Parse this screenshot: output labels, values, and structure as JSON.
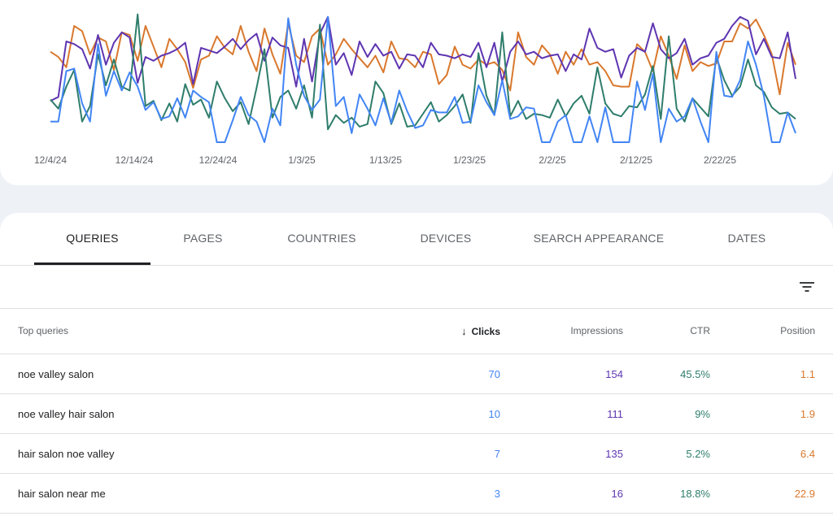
{
  "colors": {
    "clicks": "#4285f4",
    "impressions": "#5e35b1",
    "ctr": "#2e7d6b",
    "position": "#d9782d"
  },
  "chart_data": {
    "type": "line",
    "x_tick_labels": [
      "12/4/24",
      "12/14/24",
      "12/24/24",
      "1/3/25",
      "1/13/25",
      "1/23/25",
      "2/2/25",
      "2/12/25",
      "2/22/25"
    ],
    "x_start": "12/3/24",
    "x_end": "3/3/25",
    "grid": false,
    "legend": "none",
    "series": [
      {
        "key": "position",
        "color": "#d9782d",
        "values": [
          70,
          66,
          58,
          90,
          86,
          68,
          81,
          78,
          56,
          85,
          83,
          63,
          90,
          74,
          58,
          80,
          72,
          62,
          42,
          64,
          67,
          82,
          73,
          68,
          90,
          70,
          55,
          88,
          68,
          53,
          92,
          67,
          62,
          82,
          88,
          60,
          68,
          80,
          72,
          65,
          58,
          67,
          54,
          78,
          65,
          64,
          58,
          70,
          68,
          45,
          52,
          74,
          60,
          57,
          64,
          60,
          62,
          56,
          40,
          85,
          66,
          60,
          75,
          68,
          53,
          70,
          60,
          72,
          60,
          62,
          55,
          44,
          43,
          43,
          76,
          70,
          55,
          82,
          67,
          49,
          75,
          55,
          62,
          59,
          61,
          78,
          78,
          92,
          88,
          95,
          83,
          68,
          37,
          77,
          60
        ]
      },
      {
        "key": "impressions",
        "color": "#5e35b1",
        "values": [
          32,
          35,
          78,
          76,
          72,
          57,
          83,
          60,
          77,
          85,
          81,
          46,
          66,
          63,
          67,
          69,
          72,
          77,
          45,
          73,
          71,
          69,
          74,
          80,
          72,
          79,
          84,
          63,
          81,
          75,
          73,
          43,
          80,
          47,
          84,
          97,
          60,
          69,
          52,
          78,
          66,
          76,
          67,
          70,
          57,
          68,
          67,
          58,
          77,
          68,
          67,
          65,
          68,
          66,
          77,
          58,
          77,
          47,
          70,
          78,
          68,
          70,
          65,
          67,
          68,
          55,
          68,
          64,
          88,
          73,
          70,
          72,
          50,
          67,
          73,
          70,
          92,
          72,
          65,
          69,
          80,
          60,
          65,
          67,
          77,
          80,
          90,
          97,
          94,
          68,
          80,
          66,
          65,
          85,
          49
        ]
      },
      {
        "key": "ctr",
        "color": "#2e7d6b",
        "values": [
          33,
          26,
          43,
          56,
          16,
          28,
          68,
          44,
          64,
          43,
          40,
          99,
          28,
          32,
          17,
          30,
          16,
          45,
          29,
          33,
          19,
          47,
          34,
          24,
          31,
          14,
          42,
          72,
          19,
          35,
          40,
          26,
          44,
          19,
          91,
          10,
          21,
          15,
          19,
          12,
          14,
          47,
          38,
          14,
          30,
          12,
          13,
          22,
          31,
          16,
          21,
          28,
          37,
          15,
          69,
          36,
          21,
          85,
          20,
          32,
          18,
          22,
          21,
          19,
          33,
          20,
          30,
          36,
          22,
          58,
          30,
          22,
          20,
          28,
          27,
          37,
          59,
          18,
          82,
          26,
          16,
          34,
          27,
          20,
          66,
          48,
          36,
          43,
          64,
          44,
          39,
          27,
          22,
          23,
          18
        ]
      },
      {
        "key": "clicks",
        "color": "#4285f4",
        "values": [
          16,
          16,
          55,
          57,
          30,
          16,
          76,
          36,
          55,
          40,
          54,
          43,
          25,
          31,
          18,
          20,
          34,
          19,
          40,
          35,
          31,
          0,
          0,
          17,
          35,
          21,
          16,
          0,
          26,
          13,
          96,
          60,
          36,
          25,
          33,
          97,
          28,
          35,
          7,
          37,
          26,
          13,
          34,
          15,
          40,
          24,
          11,
          13,
          25,
          23,
          23,
          35,
          15,
          16,
          44,
          31,
          21,
          48,
          18,
          20,
          27,
          26,
          0,
          0,
          16,
          21,
          0,
          0,
          20,
          0,
          27,
          0,
          0,
          0,
          47,
          25,
          53,
          0,
          26,
          16,
          20,
          34,
          16,
          0,
          70,
          36,
          35,
          48,
          78,
          60,
          36,
          0,
          0,
          23,
          7
        ]
      }
    ]
  },
  "tabs": {
    "queries": "QUERIES",
    "pages": "PAGES",
    "countries": "COUNTRIES",
    "devices": "DEVICES",
    "search_appearance": "SEARCH APPEARANCE",
    "dates": "DATES"
  },
  "filter": {
    "icon": "filter-icon"
  },
  "table": {
    "headers": {
      "query": "Top queries",
      "sort_icon": "arrow-downward-icon",
      "clicks": "Clicks",
      "impressions": "Impressions",
      "ctr": "CTR",
      "position": "Position"
    },
    "rows": [
      {
        "query": "noe valley salon",
        "clicks": "70",
        "impressions": "154",
        "ctr": "45.5%",
        "position": "1.1"
      },
      {
        "query": "noe valley hair salon",
        "clicks": "10",
        "impressions": "111",
        "ctr": "9%",
        "position": "1.9"
      },
      {
        "query": "hair salon noe valley",
        "clicks": "7",
        "impressions": "135",
        "ctr": "5.2%",
        "position": "6.4"
      },
      {
        "query": "hair salon near me",
        "clicks": "3",
        "impressions": "16",
        "ctr": "18.8%",
        "position": "22.9"
      }
    ]
  }
}
